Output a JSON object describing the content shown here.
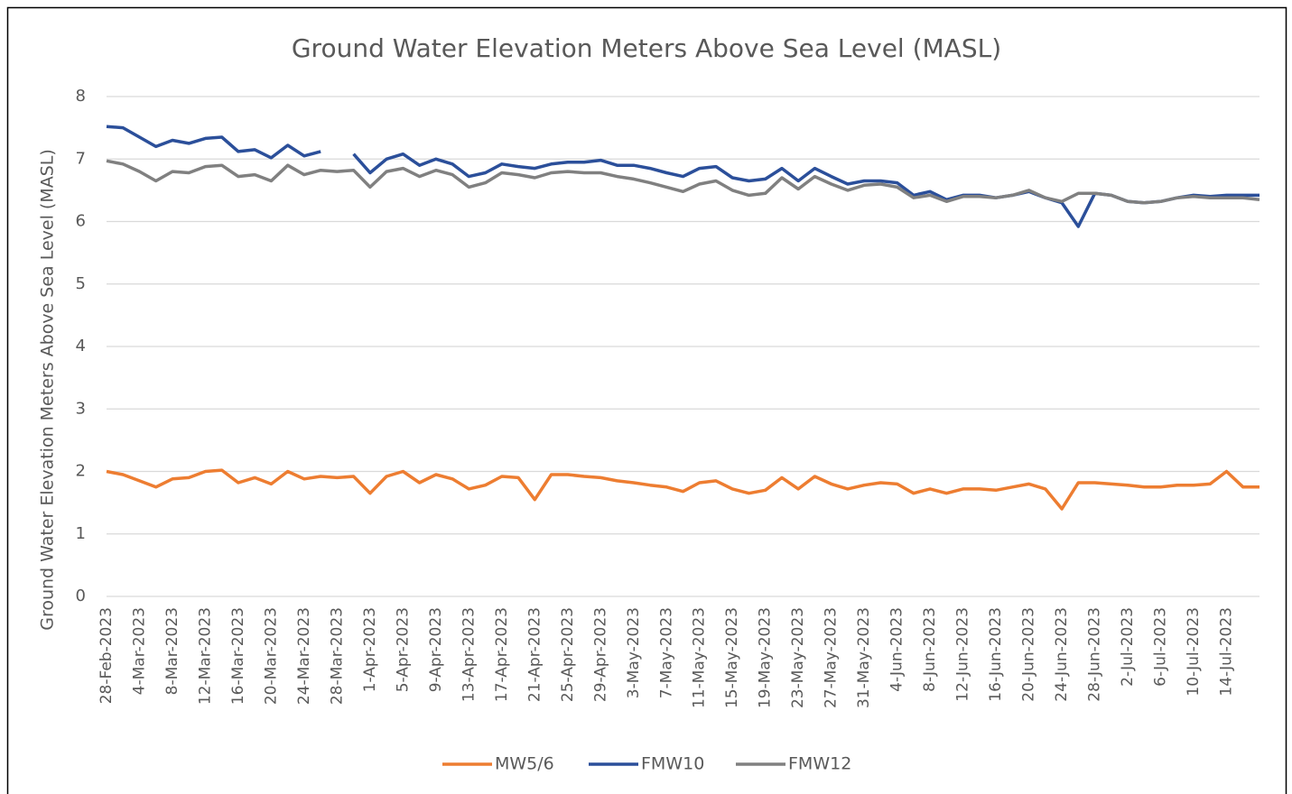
{
  "chart_data": {
    "type": "line",
    "title": "Ground Water Elevation Meters Above Sea Level (MASL)",
    "y_label": "Ground Water Elevation Meters Above Sea Level (MASL)",
    "x": [
      "28-Feb-2023",
      "2-Mar-2023",
      "4-Mar-2023",
      "6-Mar-2023",
      "8-Mar-2023",
      "10-Mar-2023",
      "12-Mar-2023",
      "14-Mar-2023",
      "16-Mar-2023",
      "18-Mar-2023",
      "20-Mar-2023",
      "22-Mar-2023",
      "24-Mar-2023",
      "26-Mar-2023",
      "28-Mar-2023",
      "30-Mar-2023",
      "1-Apr-2023",
      "3-Apr-2023",
      "5-Apr-2023",
      "7-Apr-2023",
      "9-Apr-2023",
      "11-Apr-2023",
      "13-Apr-2023",
      "15-Apr-2023",
      "17-Apr-2023",
      "19-Apr-2023",
      "21-Apr-2023",
      "23-Apr-2023",
      "25-Apr-2023",
      "27-Apr-2023",
      "29-Apr-2023",
      "1-May-2023",
      "3-May-2023",
      "5-May-2023",
      "7-May-2023",
      "9-May-2023",
      "11-May-2023",
      "13-May-2023",
      "15-May-2023",
      "17-May-2023",
      "19-May-2023",
      "21-May-2023",
      "23-May-2023",
      "25-May-2023",
      "27-May-2023",
      "29-May-2023",
      "31-May-2023",
      "2-Jun-2023",
      "4-Jun-2023",
      "6-Jun-2023",
      "8-Jun-2023",
      "10-Jun-2023",
      "12-Jun-2023",
      "14-Jun-2023",
      "16-Jun-2023",
      "18-Jun-2023",
      "20-Jun-2023",
      "22-Jun-2023",
      "24-Jun-2023",
      "26-Jun-2023",
      "28-Jun-2023",
      "30-Jun-2023",
      "2-Jul-2023",
      "4-Jul-2023",
      "6-Jul-2023",
      "8-Jul-2023",
      "10-Jul-2023",
      "12-Jul-2023",
      "14-Jul-2023",
      "16-Jul-2023",
      "18-Jul-2023"
    ],
    "series": [
      {
        "name": "MW5/6",
        "color": "#ed7d31",
        "values": [
          2.0,
          1.95,
          1.85,
          1.75,
          1.88,
          1.9,
          2.0,
          2.02,
          1.82,
          1.9,
          1.8,
          2.0,
          1.88,
          1.92,
          1.9,
          1.92,
          1.65,
          1.92,
          2.0,
          1.82,
          1.95,
          1.88,
          1.72,
          1.78,
          1.92,
          1.9,
          1.55,
          1.95,
          1.95,
          1.92,
          1.9,
          1.85,
          1.82,
          1.78,
          1.75,
          1.68,
          1.82,
          1.85,
          1.72,
          1.65,
          1.7,
          1.9,
          1.72,
          1.92,
          1.8,
          1.72,
          1.78,
          1.82,
          1.8,
          1.65,
          1.72,
          1.65,
          1.72,
          1.72,
          1.7,
          1.75,
          1.8,
          1.72,
          1.4,
          1.82,
          1.82,
          1.8,
          1.78,
          1.75,
          1.75,
          1.78,
          1.78,
          1.8,
          2.0,
          1.75,
          1.75
        ]
      },
      {
        "name": "FMW10",
        "color": "#2b4f9a",
        "values": [
          7.52,
          7.5,
          7.35,
          7.2,
          7.3,
          7.25,
          7.33,
          7.35,
          7.12,
          7.15,
          7.02,
          7.22,
          7.05,
          7.12,
          null,
          7.08,
          6.78,
          7.0,
          7.08,
          6.9,
          7.0,
          6.92,
          6.72,
          6.78,
          6.92,
          6.88,
          6.85,
          6.92,
          6.95,
          6.95,
          6.98,
          6.9,
          6.9,
          6.85,
          6.78,
          6.72,
          6.85,
          6.88,
          6.7,
          6.65,
          6.68,
          6.85,
          6.65,
          6.85,
          6.72,
          6.6,
          6.65,
          6.65,
          6.62,
          6.42,
          6.48,
          6.35,
          6.42,
          6.42,
          6.38,
          6.42,
          6.48,
          6.38,
          6.3,
          5.92,
          6.45,
          6.42,
          6.32,
          6.3,
          6.32,
          6.38,
          6.42,
          6.4,
          6.42,
          6.42,
          6.42
        ]
      },
      {
        "name": "FMW12",
        "color": "#808080",
        "values": [
          6.97,
          6.92,
          6.8,
          6.65,
          6.8,
          6.78,
          6.88,
          6.9,
          6.72,
          6.75,
          6.65,
          6.9,
          6.75,
          6.82,
          6.8,
          6.82,
          6.55,
          6.8,
          6.85,
          6.72,
          6.82,
          6.75,
          6.55,
          6.62,
          6.78,
          6.75,
          6.7,
          6.78,
          6.8,
          6.78,
          6.78,
          6.72,
          6.68,
          6.62,
          6.55,
          6.48,
          6.6,
          6.65,
          6.5,
          6.42,
          6.45,
          6.7,
          6.52,
          6.72,
          6.6,
          6.5,
          6.58,
          6.6,
          6.55,
          6.38,
          6.42,
          6.32,
          6.4,
          6.4,
          6.38,
          6.42,
          6.5,
          6.38,
          6.32,
          6.45,
          6.45,
          6.42,
          6.32,
          6.3,
          6.32,
          6.38,
          6.4,
          6.38,
          6.38,
          6.38,
          6.35
        ]
      }
    ],
    "xlim": [
      "28-Feb-2023",
      "18-Jul-2023"
    ],
    "xticks": [
      "28-Feb-2023",
      "4-Mar-2023",
      "8-Mar-2023",
      "12-Mar-2023",
      "16-Mar-2023",
      "20-Mar-2023",
      "24-Mar-2023",
      "28-Mar-2023",
      "1-Apr-2023",
      "5-Apr-2023",
      "9-Apr-2023",
      "13-Apr-2023",
      "17-Apr-2023",
      "21-Apr-2023",
      "25-Apr-2023",
      "29-Apr-2023",
      "3-May-2023",
      "7-May-2023",
      "11-May-2023",
      "15-May-2023",
      "19-May-2023",
      "23-May-2023",
      "27-May-2023",
      "31-May-2023",
      "4-Jun-2023",
      "8-Jun-2023",
      "12-Jun-2023",
      "16-Jun-2023",
      "20-Jun-2023",
      "24-Jun-2023",
      "28-Jun-2023",
      "2-Jul-2023",
      "6-Jul-2023",
      "10-Jul-2023",
      "14-Jul-2023"
    ],
    "ylim": [
      0,
      8
    ],
    "yticks": [
      0,
      1,
      2,
      3,
      4,
      5,
      6,
      7,
      8
    ],
    "grid": true,
    "legend": "bottom"
  }
}
